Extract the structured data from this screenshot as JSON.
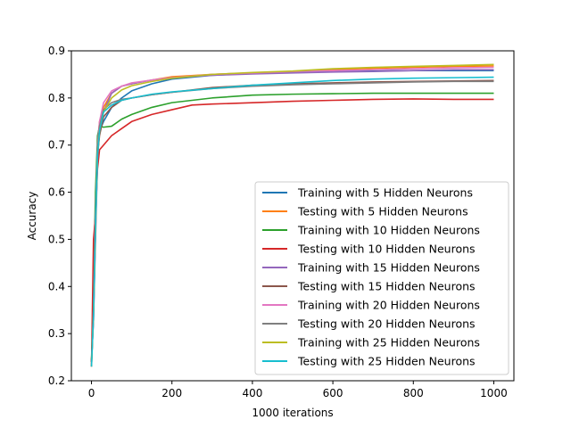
{
  "chart_data": {
    "type": "line",
    "xlabel": "1000 iterations",
    "ylabel": "Accuracy",
    "xlim": [
      -50,
      1050
    ],
    "ylim": [
      0.2,
      0.9
    ],
    "xticks": [
      0,
      200,
      400,
      600,
      800,
      1000
    ],
    "yticks": [
      0.2,
      0.3,
      0.4,
      0.5,
      0.6,
      0.7,
      0.8,
      0.9
    ],
    "grid": false,
    "legend_position": "lower-right",
    "series": [
      {
        "name": "Training with 5 Hidden Neurons",
        "color": "#1f77b4",
        "points": [
          [
            0,
            0.24
          ],
          [
            5,
            0.33
          ],
          [
            10,
            0.52
          ],
          [
            15,
            0.68
          ],
          [
            20,
            0.73
          ],
          [
            30,
            0.75
          ],
          [
            50,
            0.78
          ],
          [
            75,
            0.8
          ],
          [
            100,
            0.815
          ],
          [
            150,
            0.83
          ],
          [
            200,
            0.84
          ],
          [
            300,
            0.848
          ],
          [
            400,
            0.852
          ],
          [
            500,
            0.855
          ],
          [
            600,
            0.856
          ],
          [
            700,
            0.857
          ],
          [
            800,
            0.858
          ],
          [
            900,
            0.858
          ],
          [
            1000,
            0.858
          ]
        ]
      },
      {
        "name": "Testing with 5 Hidden Neurons",
        "color": "#ff7f0e",
        "points": [
          [
            0,
            0.24
          ],
          [
            5,
            0.36
          ],
          [
            10,
            0.55
          ],
          [
            15,
            0.7
          ],
          [
            20,
            0.75
          ],
          [
            30,
            0.78
          ],
          [
            50,
            0.81
          ],
          [
            75,
            0.825
          ],
          [
            100,
            0.83
          ],
          [
            150,
            0.838
          ],
          [
            200,
            0.845
          ],
          [
            300,
            0.85
          ],
          [
            400,
            0.853
          ],
          [
            500,
            0.856
          ],
          [
            600,
            0.86
          ],
          [
            700,
            0.863
          ],
          [
            800,
            0.865
          ],
          [
            900,
            0.867
          ],
          [
            1000,
            0.868
          ]
        ]
      },
      {
        "name": "Training with 10 Hidden Neurons",
        "color": "#2ca02c",
        "points": [
          [
            0,
            0.24
          ],
          [
            5,
            0.4
          ],
          [
            10,
            0.6
          ],
          [
            15,
            0.72
          ],
          [
            20,
            0.74
          ],
          [
            30,
            0.738
          ],
          [
            50,
            0.74
          ],
          [
            75,
            0.755
          ],
          [
            100,
            0.765
          ],
          [
            150,
            0.78
          ],
          [
            200,
            0.79
          ],
          [
            300,
            0.8
          ],
          [
            400,
            0.806
          ],
          [
            500,
            0.808
          ],
          [
            600,
            0.809
          ],
          [
            700,
            0.81
          ],
          [
            800,
            0.81
          ],
          [
            900,
            0.81
          ],
          [
            1000,
            0.81
          ]
        ]
      },
      {
        "name": "Testing with 10 Hidden Neurons",
        "color": "#d62728",
        "points": [
          [
            0,
            0.23
          ],
          [
            5,
            0.5
          ],
          [
            10,
            0.55
          ],
          [
            15,
            0.65
          ],
          [
            20,
            0.69
          ],
          [
            30,
            0.7
          ],
          [
            50,
            0.72
          ],
          [
            75,
            0.735
          ],
          [
            100,
            0.75
          ],
          [
            150,
            0.765
          ],
          [
            200,
            0.775
          ],
          [
            250,
            0.785
          ],
          [
            300,
            0.787
          ],
          [
            400,
            0.79
          ],
          [
            500,
            0.793
          ],
          [
            600,
            0.795
          ],
          [
            700,
            0.797
          ],
          [
            800,
            0.798
          ],
          [
            900,
            0.797
          ],
          [
            1000,
            0.797
          ]
        ]
      },
      {
        "name": "Training with 15 Hidden Neurons",
        "color": "#9467bd",
        "points": [
          [
            0,
            0.24
          ],
          [
            5,
            0.33
          ],
          [
            10,
            0.5
          ],
          [
            15,
            0.67
          ],
          [
            20,
            0.73
          ],
          [
            30,
            0.77
          ],
          [
            50,
            0.81
          ],
          [
            75,
            0.825
          ],
          [
            100,
            0.83
          ],
          [
            150,
            0.838
          ],
          [
            200,
            0.843
          ],
          [
            300,
            0.848
          ],
          [
            400,
            0.851
          ],
          [
            500,
            0.853
          ],
          [
            600,
            0.855
          ],
          [
            700,
            0.856
          ],
          [
            800,
            0.858
          ],
          [
            900,
            0.86
          ],
          [
            1000,
            0.86
          ]
        ]
      },
      {
        "name": "Testing with 15 Hidden Neurons",
        "color": "#8c564b",
        "points": [
          [
            0,
            0.24
          ],
          [
            5,
            0.35
          ],
          [
            10,
            0.55
          ],
          [
            15,
            0.68
          ],
          [
            20,
            0.72
          ],
          [
            30,
            0.76
          ],
          [
            50,
            0.78
          ],
          [
            75,
            0.795
          ],
          [
            100,
            0.8
          ],
          [
            150,
            0.807
          ],
          [
            200,
            0.812
          ],
          [
            300,
            0.822
          ],
          [
            400,
            0.827
          ],
          [
            500,
            0.83
          ],
          [
            600,
            0.832
          ],
          [
            700,
            0.834
          ],
          [
            800,
            0.835
          ],
          [
            900,
            0.836
          ],
          [
            1000,
            0.837
          ]
        ]
      },
      {
        "name": "Training with 20 Hidden Neurons",
        "color": "#e377c2",
        "points": [
          [
            0,
            0.23
          ],
          [
            5,
            0.35
          ],
          [
            10,
            0.55
          ],
          [
            15,
            0.7
          ],
          [
            20,
            0.75
          ],
          [
            30,
            0.79
          ],
          [
            50,
            0.815
          ],
          [
            75,
            0.825
          ],
          [
            100,
            0.832
          ],
          [
            150,
            0.838
          ],
          [
            200,
            0.843
          ],
          [
            300,
            0.85
          ],
          [
            400,
            0.853
          ],
          [
            500,
            0.856
          ],
          [
            600,
            0.858
          ],
          [
            700,
            0.86
          ],
          [
            800,
            0.862
          ],
          [
            900,
            0.864
          ],
          [
            1000,
            0.865
          ]
        ]
      },
      {
        "name": "Testing with 20 Hidden Neurons",
        "color": "#7f7f7f",
        "points": [
          [
            0,
            0.23
          ],
          [
            5,
            0.35
          ],
          [
            10,
            0.55
          ],
          [
            15,
            0.69
          ],
          [
            20,
            0.74
          ],
          [
            30,
            0.775
          ],
          [
            50,
            0.79
          ],
          [
            75,
            0.797
          ],
          [
            100,
            0.8
          ],
          [
            150,
            0.807
          ],
          [
            200,
            0.812
          ],
          [
            300,
            0.82
          ],
          [
            400,
            0.825
          ],
          [
            500,
            0.828
          ],
          [
            600,
            0.83
          ],
          [
            700,
            0.832
          ],
          [
            800,
            0.834
          ],
          [
            900,
            0.835
          ],
          [
            1000,
            0.835
          ]
        ]
      },
      {
        "name": "Training with 25 Hidden Neurons",
        "color": "#bcbd22",
        "points": [
          [
            0,
            0.23
          ],
          [
            5,
            0.34
          ],
          [
            10,
            0.52
          ],
          [
            15,
            0.68
          ],
          [
            20,
            0.73
          ],
          [
            30,
            0.77
          ],
          [
            50,
            0.8
          ],
          [
            75,
            0.817
          ],
          [
            100,
            0.826
          ],
          [
            150,
            0.835
          ],
          [
            200,
            0.842
          ],
          [
            300,
            0.85
          ],
          [
            400,
            0.854
          ],
          [
            500,
            0.857
          ],
          [
            600,
            0.862
          ],
          [
            700,
            0.865
          ],
          [
            800,
            0.867
          ],
          [
            900,
            0.869
          ],
          [
            1000,
            0.871
          ]
        ]
      },
      {
        "name": "Testing with 25 Hidden Neurons",
        "color": "#17becf",
        "points": [
          [
            0,
            0.23
          ],
          [
            5,
            0.34
          ],
          [
            10,
            0.53
          ],
          [
            15,
            0.68
          ],
          [
            20,
            0.73
          ],
          [
            30,
            0.77
          ],
          [
            50,
            0.785
          ],
          [
            75,
            0.795
          ],
          [
            100,
            0.8
          ],
          [
            150,
            0.808
          ],
          [
            200,
            0.813
          ],
          [
            300,
            0.82
          ],
          [
            400,
            0.827
          ],
          [
            500,
            0.832
          ],
          [
            600,
            0.837
          ],
          [
            700,
            0.84
          ],
          [
            800,
            0.842
          ],
          [
            900,
            0.843
          ],
          [
            1000,
            0.844
          ]
        ]
      }
    ]
  }
}
